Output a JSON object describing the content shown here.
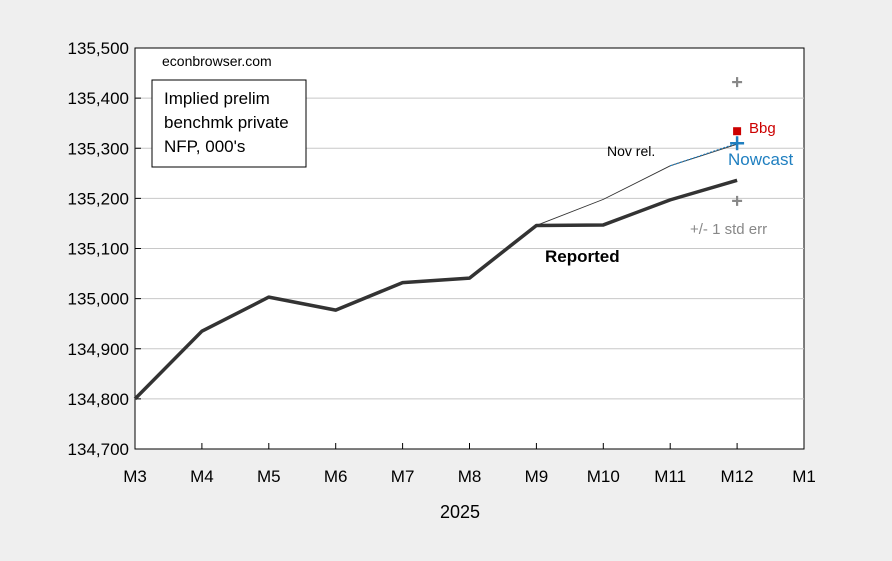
{
  "chart_data": {
    "type": "line",
    "source_note": "econbrowser.com",
    "legend_box": [
      "Implied prelim",
      "benchmk private",
      "NFP, 000's"
    ],
    "x_ticks": [
      "M3",
      "M4",
      "M5",
      "M6",
      "M7",
      "M8",
      "M9",
      "M10",
      "M11",
      "M12",
      "M1"
    ],
    "x_year_label": "2025",
    "y_ticks": [
      "134,700",
      "134,800",
      "134,900",
      "135,000",
      "135,100",
      "135,200",
      "135,300",
      "135,400",
      "135,500"
    ],
    "ylim": [
      134700,
      135500
    ],
    "grid": true,
    "series": [
      {
        "name": "Reported",
        "color": "#333333",
        "x": [
          "M3",
          "M4",
          "M5",
          "M6",
          "M7",
          "M8",
          "M9",
          "M10",
          "M11",
          "M12"
        ],
        "values": [
          134800,
          134935,
          135003,
          134977,
          135032,
          135041,
          135146,
          135147,
          135197,
          135236
        ]
      },
      {
        "name": "Nov rel.",
        "color": "#333333",
        "x": [
          "M9",
          "M10",
          "M11",
          "M12"
        ],
        "values": [
          135146,
          135198,
          135265,
          135308
        ]
      },
      {
        "name": "Nowcast",
        "color": "#1f7fc0",
        "x": [
          "M11",
          "M12"
        ],
        "values": [
          135265,
          135310
        ]
      }
    ],
    "points": [
      {
        "label": "Bbg",
        "x": "M12",
        "value": 135334,
        "color": "#cc0000",
        "marker": "square"
      },
      {
        "label": "Nowcast",
        "x": "M12",
        "value": 135310,
        "color": "#1f7fc0",
        "marker": "plus"
      },
      {
        "label": "+/- 1 std err",
        "x": "M12",
        "values": [
          135432,
          135195
        ],
        "color": "#888888",
        "marker": "plus"
      }
    ]
  }
}
